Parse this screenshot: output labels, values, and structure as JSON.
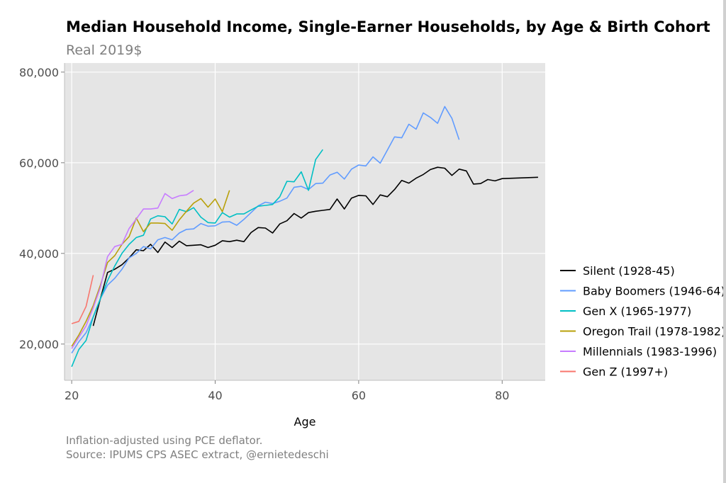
{
  "chart_data": {
    "type": "line",
    "title": "Median Household Income, Single-Earner Households, by Age & Birth Cohort",
    "subtitle": "Real 2019$",
    "xlabel": "Age",
    "ylabel": "",
    "xlim": [
      19,
      86
    ],
    "ylim": [
      12000,
      82000
    ],
    "x_ticks": [
      20,
      40,
      60,
      80
    ],
    "y_ticks": [
      20000,
      40000,
      60000,
      80000
    ],
    "x_tick_labels": [
      "20",
      "40",
      "60",
      "80"
    ],
    "y_tick_labels": [
      "20,000",
      "40,000",
      "60,000",
      "80,000"
    ],
    "grid": true,
    "legend_position": "right",
    "captions": [
      "Inflation-adjusted using PCE deflator.",
      "Source: IPUMS CPS ASEC extract, @ernietedeschi"
    ],
    "series": [
      {
        "name": "Silent (1928-45)",
        "color": "#000000",
        "x": [
          23,
          24,
          25,
          26,
          27,
          28,
          29,
          30,
          31,
          32,
          33,
          34,
          35,
          36,
          37,
          38,
          39,
          40,
          41,
          42,
          43,
          44,
          45,
          46,
          47,
          48,
          49,
          50,
          51,
          52,
          53,
          54,
          55,
          56,
          57,
          58,
          59,
          60,
          61,
          62,
          63,
          64,
          65,
          66,
          67,
          68,
          69,
          70,
          71,
          72,
          73,
          74,
          75,
          76,
          77,
          78,
          79,
          80,
          85
        ],
        "y": [
          24000,
          30000,
          35800,
          36500,
          37500,
          39000,
          40800,
          40600,
          42000,
          40200,
          42500,
          41300,
          42700,
          41700,
          41800,
          41900,
          41300,
          41800,
          42800,
          42600,
          42900,
          42600,
          44600,
          45700,
          45600,
          44500,
          46500,
          47200,
          48800,
          47800,
          49000,
          49300,
          49500,
          49700,
          52000,
          49800,
          52200,
          52800,
          52700,
          50800,
          52900,
          52500,
          54100,
          56100,
          55500,
          56600,
          57400,
          58500,
          59000,
          58800,
          57200,
          58600,
          58200,
          55300,
          55400,
          56300,
          56000,
          56500,
          56800
        ]
      },
      {
        "name": "Baby Boomers (1946-64)",
        "color": "#619cff",
        "x": [
          20,
          21,
          22,
          23,
          24,
          25,
          26,
          27,
          28,
          29,
          30,
          31,
          32,
          33,
          34,
          35,
          36,
          37,
          38,
          39,
          40,
          41,
          42,
          43,
          44,
          45,
          46,
          47,
          48,
          49,
          50,
          51,
          52,
          53,
          54,
          55,
          56,
          57,
          58,
          59,
          60,
          61,
          62,
          63,
          64,
          65,
          66,
          67,
          68,
          69,
          70,
          71,
          72,
          73,
          74
        ],
        "y": [
          18000,
          20500,
          22500,
          26000,
          30000,
          33000,
          34500,
          36500,
          39000,
          40000,
          41500,
          41000,
          43000,
          43500,
          43000,
          44500,
          45300,
          45400,
          46600,
          46000,
          46100,
          46900,
          47000,
          46200,
          47500,
          49000,
          50500,
          51300,
          51000,
          51500,
          52200,
          54600,
          54800,
          54100,
          55400,
          55500,
          57300,
          57900,
          56400,
          58600,
          59500,
          59300,
          61300,
          59900,
          62800,
          65700,
          65500,
          68500,
          67400,
          71000,
          70000,
          68700,
          72400,
          69800,
          65100
        ]
      },
      {
        "name": "Gen X (1965-1977)",
        "color": "#00bfc4",
        "x": [
          20,
          21,
          22,
          23,
          24,
          25,
          26,
          27,
          28,
          29,
          30,
          31,
          32,
          33,
          34,
          35,
          36,
          37,
          38,
          39,
          40,
          41,
          42,
          43,
          44,
          45,
          46,
          47,
          48,
          49,
          50,
          51,
          52,
          53,
          54,
          55
        ],
        "y": [
          15000,
          18800,
          20800,
          26000,
          30000,
          34000,
          37200,
          40000,
          42000,
          43500,
          44000,
          47600,
          48300,
          48100,
          46500,
          49700,
          49200,
          50100,
          48000,
          46800,
          46700,
          49000,
          48000,
          48700,
          48700,
          49600,
          50400,
          50600,
          50800,
          52500,
          55900,
          55800,
          58000,
          53900,
          60700,
          62900
        ]
      },
      {
        "name": "Oregon Trail (1978-1982)",
        "color": "#b8a00a",
        "x": [
          20,
          21,
          22,
          23,
          24,
          25,
          26,
          27,
          28,
          29,
          30,
          31,
          32,
          33,
          34,
          35,
          36,
          37,
          38,
          39,
          40,
          41,
          42
        ],
        "y": [
          19500,
          22000,
          25000,
          28500,
          33000,
          38000,
          39500,
          42000,
          43700,
          47800,
          44800,
          46700,
          46700,
          46600,
          45100,
          47400,
          49300,
          51100,
          52100,
          50200,
          52000,
          49200,
          53900
        ]
      },
      {
        "name": "Millennials (1983-1996)",
        "color": "#c77cff",
        "x": [
          20,
          21,
          22,
          23,
          24,
          25,
          26,
          27,
          28,
          29,
          30,
          31,
          32,
          33,
          34,
          35,
          36,
          37
        ],
        "y": [
          19000,
          21500,
          24000,
          28000,
          32500,
          39300,
          41500,
          42000,
          45500,
          47600,
          49800,
          49800,
          50000,
          53200,
          52100,
          52700,
          52900,
          53900
        ]
      },
      {
        "name": "Gen Z (1997+)",
        "color": "#f8766d",
        "x": [
          20,
          21,
          22,
          23
        ],
        "y": [
          24500,
          25000,
          28300,
          35200
        ]
      }
    ]
  }
}
